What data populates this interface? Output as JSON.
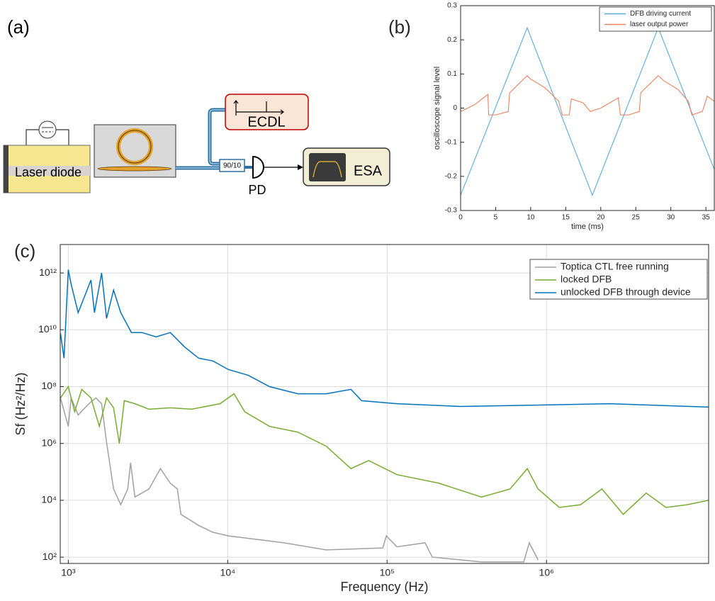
{
  "diagram": {
    "label": "(a)",
    "nodes": [
      {
        "label": "Laser diode"
      },
      {
        "label": "ECDL"
      },
      {
        "label": "90/10"
      },
      {
        "label": "PD"
      },
      {
        "label": "ESA"
      }
    ]
  },
  "chart_data": [
    {
      "type": "line",
      "panel_label": "(b)",
      "x_label": "time (ms)",
      "y_label": "oscilloscope signal level",
      "xlim": [
        0,
        36.2
      ],
      "ylim": [
        -0.3,
        0.3
      ],
      "xticks": [
        0,
        5,
        10,
        15,
        20,
        25,
        30,
        35
      ],
      "yticks": [
        -0.3,
        -0.2,
        -0.1,
        0,
        0.1,
        0.2,
        0.3
      ],
      "grid": false,
      "legend": "upper right",
      "series": [
        {
          "name": "DFB driving current",
          "color": "#5aa9dc",
          "x": [
            0,
            9.5,
            18.8,
            28.2,
            36.2
          ],
          "values": [
            -0.255,
            0.235,
            -0.255,
            0.235,
            -0.18
          ]
        },
        {
          "name": "laser output power",
          "color": "#ea825e",
          "x": [
            0,
            2,
            3.9,
            4,
            5,
            6.8,
            7,
            9.5,
            10,
            12,
            14,
            14.5,
            15.5,
            15.8,
            17.5,
            18.5,
            20,
            22.5,
            22.8,
            24,
            25.5,
            25.7,
            28.2,
            29,
            31,
            32.5,
            33,
            34.5,
            35.2,
            36.2
          ],
          "values": [
            -0.01,
            0.01,
            0.04,
            -0.02,
            -0.02,
            -0.01,
            0.045,
            0.095,
            0.085,
            0.06,
            0.02,
            -0.02,
            -0.02,
            0.027,
            0.015,
            -0.01,
            0,
            0.03,
            -0.02,
            -0.02,
            -0.01,
            0.045,
            0.095,
            0.08,
            0.055,
            0.02,
            -0.02,
            -0.01,
            0.035,
            0.02
          ]
        }
      ]
    },
    {
      "type": "line",
      "panel_label": "(c)",
      "x_label": "Frequency (Hz)",
      "y_label": "Sf (Hz²/Hz)",
      "xscale": "log",
      "yscale": "log",
      "xlim": [
        890,
        10400000
      ],
      "ylim": [
        60,
        10000000000000
      ],
      "xticks": [
        {
          "value": 1000,
          "label": "10³"
        },
        {
          "value": 10000,
          "label": "10⁴"
        },
        {
          "value": 100000,
          "label": "10⁵"
        },
        {
          "value": 1000000,
          "label": "10⁶"
        }
      ],
      "yticks": [
        {
          "value": 100,
          "label": "10²"
        },
        {
          "value": 10000,
          "label": "10⁴"
        },
        {
          "value": 1000000,
          "label": "10⁶"
        },
        {
          "value": 100000000,
          "label": "10⁸"
        },
        {
          "value": 10000000000,
          "label": "10¹⁰"
        },
        {
          "value": 1000000000000,
          "label": "10¹²"
        }
      ],
      "grid": true,
      "legend": "upper right",
      "series": [
        {
          "name": "Toptica CTL free running",
          "color": "#a0a0a0",
          "x": [
            893,
            1000,
            1042,
            1153,
            1346,
            1491,
            1618,
            1738,
            1923,
            2133,
            2360,
            2459,
            2617,
            3209,
            3782,
            4365,
            4832,
            5088,
            6577,
            8072,
            10090,
            22500,
            41500,
            94000,
            98900,
            115300,
            173000,
            192000,
            391000,
            720000,
            780000,
            885000
          ],
          "values": [
            40000000,
            4000000,
            40000000,
            10000000,
            25000000,
            40000000,
            25000000,
            1100000,
            25000,
            7000,
            25000,
            210000,
            13000,
            25000,
            130000,
            40000,
            25000,
            3200,
            1300,
            750,
            560,
            320,
            180,
            210,
            560,
            230,
            320,
            100,
            68,
            68,
            320,
            80
          ]
        },
        {
          "name": "locked DFB",
          "color": "#77ac30",
          "x": [
            893,
            1000,
            1096,
            1214,
            1387,
            1566,
            1738,
            1923,
            2090,
            2245,
            2617,
            3209,
            4365,
            5929,
            8950,
            10960,
            12790,
            18280,
            27540,
            41500,
            59290,
            76600,
            115300,
            211000,
            391000,
            590000,
            758000,
            885000,
            1203000,
            1636000,
            2227000,
            3030000,
            4222000,
            5617000,
            7642000,
            10400000
          ],
          "values": [
            40000000,
            100000000,
            13000000,
            80000000,
            40000000,
            4000000,
            40000000,
            18000000,
            1000000,
            32000000,
            25000000,
            16000000,
            18000000,
            16000000,
            25000000,
            56000000,
            13000000,
            4000000,
            2500000,
            800000,
            130000,
            250000,
            80000,
            40000,
            13000,
            25000,
            130000,
            25000,
            5600,
            7000,
            25000,
            3200,
            18000,
            5600,
            7000,
            10000
          ]
        },
        {
          "name": "unlocked DFB through device",
          "color": "#0072bd",
          "x": [
            893,
            940,
            1000,
            1042,
            1153,
            1253,
            1387,
            1459,
            1618,
            1738,
            1923,
            2133,
            2489,
            2897,
            3556,
            4365,
            5358,
            6577,
            8072,
            10090,
            13460,
            18280,
            27540,
            41500,
            59290,
            69180,
            115300,
            289700,
            2489000,
            10400000
          ],
          "values": [
            7500000000,
            1000000000,
            1300000000000,
            400000000000,
            40000000000,
            130000000000,
            560000000000,
            40000000000,
            1000000000000,
            25000000000,
            250000000000,
            40000000000,
            8000000000,
            8000000000,
            5600000000,
            8000000000,
            2500000000,
            1000000000,
            800000000,
            400000000,
            250000000,
            100000000,
            56000000,
            56000000,
            80000000,
            32000000,
            25000000,
            20000000,
            25000000,
            19000000
          ]
        }
      ]
    }
  ]
}
